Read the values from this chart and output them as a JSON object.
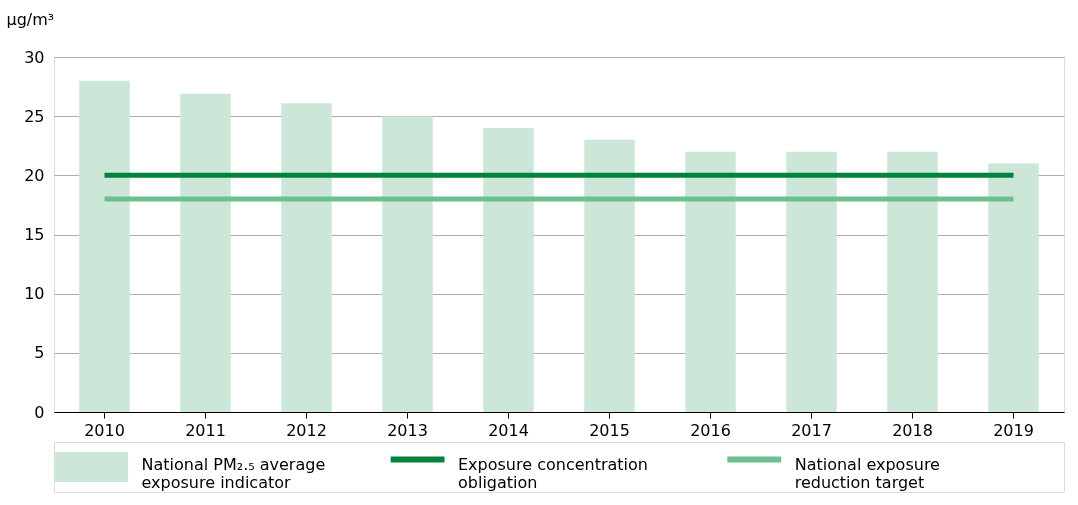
{
  "chart_data": {
    "type": "bar",
    "ylabel": "µg/m³",
    "categories": [
      "2010",
      "2011",
      "2012",
      "2013",
      "2014",
      "2015",
      "2016",
      "2017",
      "2018",
      "2019"
    ],
    "series": [
      {
        "name": "National PM₂.₅ average exposure indicator",
        "color": "#cce6d8",
        "values": [
          28,
          26.9,
          26.1,
          25,
          24,
          23,
          22,
          22,
          22,
          21
        ]
      },
      {
        "name": "Exposure concentration obligation",
        "type": "line",
        "color": "#00843d",
        "values": [
          20,
          20,
          20,
          20,
          20,
          20,
          20,
          20,
          20,
          20
        ]
      },
      {
        "name": "National exposure reduction target",
        "type": "line",
        "color": "#6cbf8e",
        "values": [
          18,
          18,
          18,
          18,
          18,
          18,
          18,
          18,
          18,
          18
        ]
      }
    ],
    "ylim": [
      0,
      30
    ],
    "yticks": [
      0,
      5,
      10,
      15,
      20,
      25,
      30
    ],
    "grid": "y",
    "legend": "bottom"
  }
}
